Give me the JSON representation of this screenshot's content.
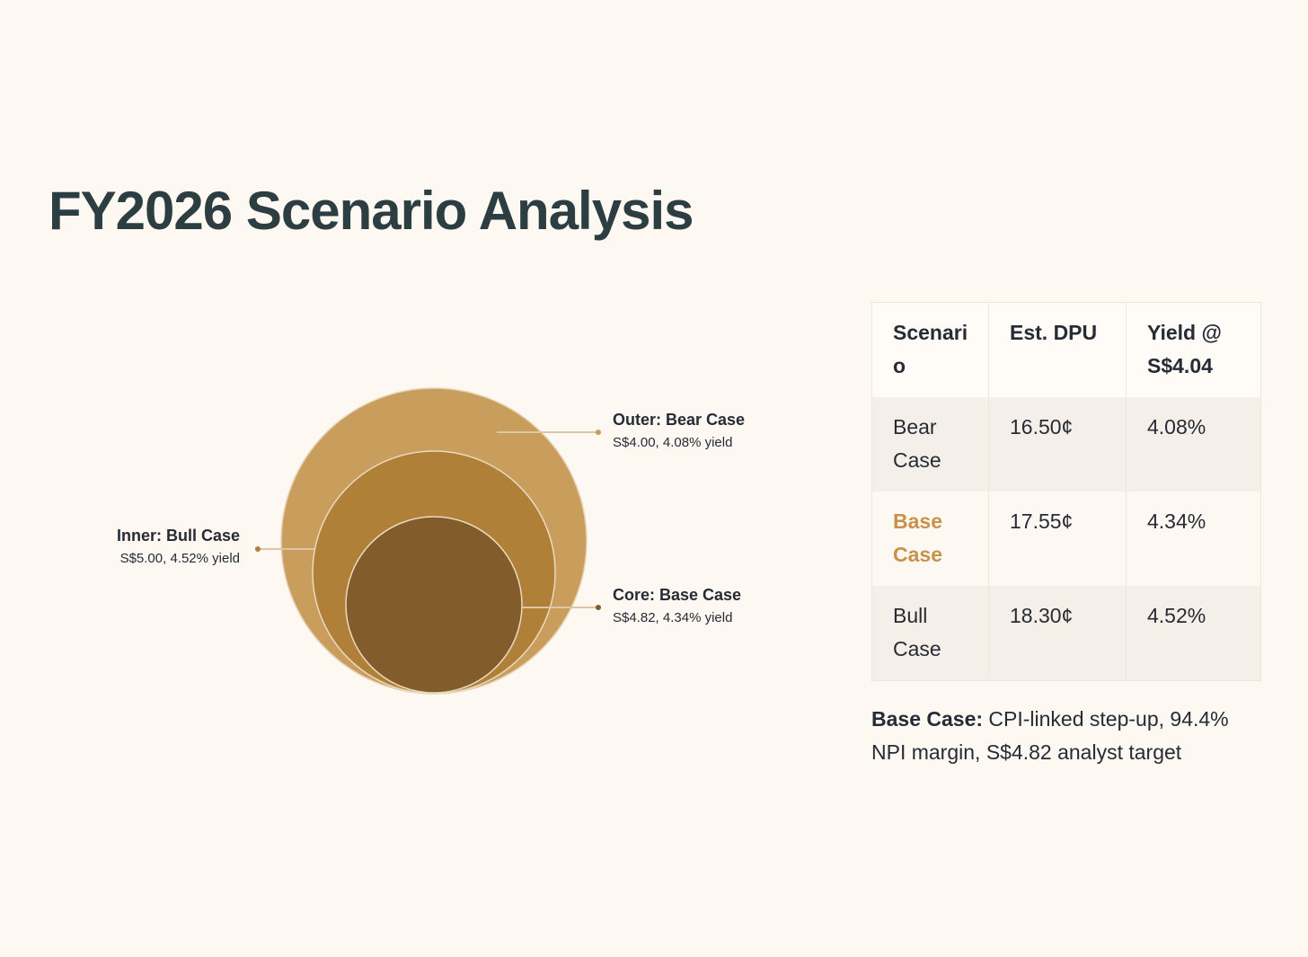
{
  "title": "FY2026 Scenario Analysis",
  "diagram": {
    "labels": [
      {
        "title": "Outer: Bear Case",
        "detail": "S$4.00, 4.08% yield"
      },
      {
        "title": "Inner: Bull Case",
        "detail": "S$5.00, 4.52% yield"
      },
      {
        "title": "Core: Base Case",
        "detail": "S$4.82, 4.34% yield"
      }
    ]
  },
  "table": {
    "header": [
      "Scenario",
      "Est. DPU",
      "Yield @ S$4.04"
    ],
    "rows": [
      [
        "Bear Case",
        "16.50¢",
        "4.08%"
      ],
      [
        "Base Case",
        "17.55¢",
        "4.34%"
      ],
      [
        "Bull Case",
        "18.30¢",
        "4.52%"
      ]
    ]
  },
  "note": {
    "label": "Base Case:",
    "text": "CPI-linked step-up, 94.4% NPI margin, S$4.82 analyst target"
  }
}
